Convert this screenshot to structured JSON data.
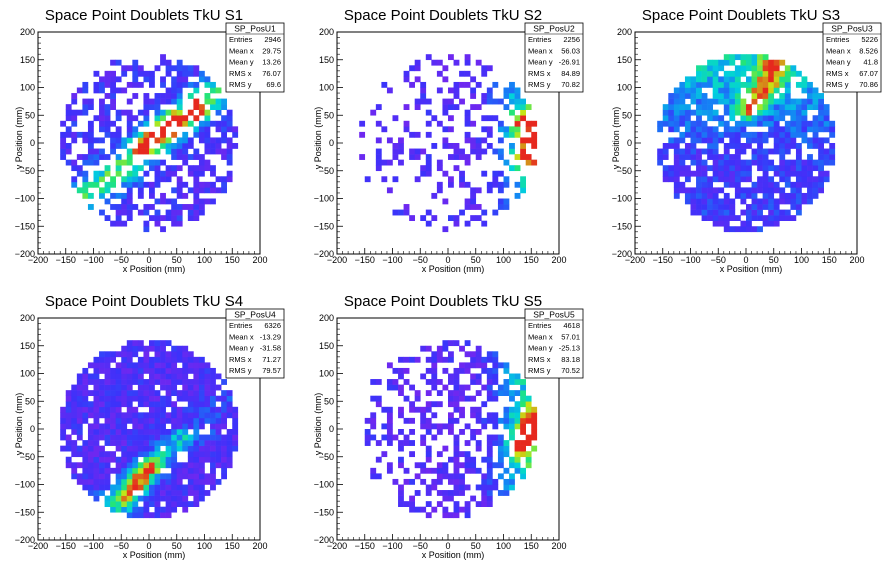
{
  "chart_data": [
    {
      "type": "heatmap",
      "title": "Space Point Doublets TkU S1",
      "xlabel": "x Position (mm)",
      "ylabel": "y Position (mm)",
      "xlim": [
        -200,
        200
      ],
      "ylim": [
        -200,
        200
      ],
      "ticks": [
        "−200",
        "−150",
        "−100",
        "−50",
        "0",
        "50",
        "100",
        "150",
        "200"
      ],
      "stats": {
        "name": "SP_PosU1",
        "rows": [
          {
            "label": "Entries",
            "value": "2946"
          },
          {
            "label": "Mean x",
            "value": "29.75"
          },
          {
            "label": "Mean y",
            "value": "13.26"
          },
          {
            "label": "RMS x",
            "value": "76.07"
          },
          {
            "label": "RMS y",
            "value": "69.6"
          }
        ]
      },
      "pattern": "diagonal-band",
      "hotspots": [
        [
          20,
          20
        ],
        [
          45,
          35
        ],
        [
          85,
          60
        ],
        [
          -10,
          -5
        ]
      ]
    },
    {
      "type": "heatmap",
      "title": "Space Point Doublets TkU S2",
      "xlabel": "x Position (mm)",
      "ylabel": "y Position (mm)",
      "xlim": [
        -200,
        200
      ],
      "ylim": [
        -200,
        200
      ],
      "ticks": [
        "−200",
        "−150",
        "−100",
        "−50",
        "0",
        "50",
        "100",
        "150",
        "200"
      ],
      "stats": {
        "name": "SP_PosU2",
        "rows": [
          {
            "label": "Entries",
            "value": "2256"
          },
          {
            "label": "Mean x",
            "value": "56.03"
          },
          {
            "label": "Mean y",
            "value": "-26.91"
          },
          {
            "label": "RMS x",
            "value": "84.89"
          },
          {
            "label": "RMS y",
            "value": "70.82"
          }
        ]
      },
      "pattern": "right-edge",
      "hotspots": [
        [
          150,
          10
        ],
        [
          140,
          -20
        ],
        [
          130,
          40
        ]
      ]
    },
    {
      "type": "heatmap",
      "title": "Space Point Doublets TkU S3",
      "xlabel": "x Position (mm)",
      "ylabel": "y Position (mm)",
      "xlim": [
        -200,
        200
      ],
      "ylim": [
        -200,
        200
      ],
      "ticks": [
        "−200",
        "−150",
        "−100",
        "−50",
        "0",
        "50",
        "100",
        "150",
        "200"
      ],
      "stats": {
        "name": "SP_PosU3",
        "rows": [
          {
            "label": "Entries",
            "value": "5226"
          },
          {
            "label": "Mean x",
            "value": "8.526"
          },
          {
            "label": "Mean y",
            "value": "41.8"
          },
          {
            "label": "RMS x",
            "value": "67.07"
          },
          {
            "label": "RMS y",
            "value": "70.86"
          }
        ]
      },
      "pattern": "upper-cluster",
      "hotspots": [
        [
          50,
          140
        ],
        [
          40,
          110
        ],
        [
          20,
          80
        ],
        [
          0,
          60
        ]
      ]
    },
    {
      "type": "heatmap",
      "title": "Space Point Doublets TkU S4",
      "xlabel": "x Position (mm)",
      "ylabel": "y Position (mm)",
      "xlim": [
        -200,
        200
      ],
      "ylim": [
        -200,
        200
      ],
      "ticks": [
        "−200",
        "−150",
        "−100",
        "−50",
        "0",
        "50",
        "100",
        "150",
        "200"
      ],
      "stats": {
        "name": "SP_PosU4",
        "rows": [
          {
            "label": "Entries",
            "value": "6326"
          },
          {
            "label": "Mean x",
            "value": "-13.29"
          },
          {
            "label": "Mean y",
            "value": "-31.58"
          },
          {
            "label": "RMS x",
            "value": "71.27"
          },
          {
            "label": "RMS y",
            "value": "79.57"
          }
        ]
      },
      "pattern": "lower-band",
      "hotspots": [
        [
          -20,
          -100
        ],
        [
          -40,
          -130
        ],
        [
          0,
          -70
        ]
      ]
    },
    {
      "type": "heatmap",
      "title": "Space Point Doublets TkU S5",
      "xlabel": "x Position (mm)",
      "ylabel": "y Position (mm)",
      "xlim": [
        -200,
        200
      ],
      "ylim": [
        -200,
        200
      ],
      "ticks": [
        "−200",
        "−150",
        "−100",
        "−50",
        "0",
        "50",
        "100",
        "150",
        "200"
      ],
      "stats": {
        "name": "SP_PosU5",
        "rows": [
          {
            "label": "Entries",
            "value": "4618"
          },
          {
            "label": "Mean x",
            "value": "57.01"
          },
          {
            "label": "Mean y",
            "value": "-25.13"
          },
          {
            "label": "RMS x",
            "value": "83.18"
          },
          {
            "label": "RMS y",
            "value": "70.52"
          }
        ]
      },
      "pattern": "right-edge",
      "hotspots": [
        [
          150,
          20
        ],
        [
          140,
          -10
        ],
        [
          130,
          -40
        ]
      ]
    }
  ]
}
